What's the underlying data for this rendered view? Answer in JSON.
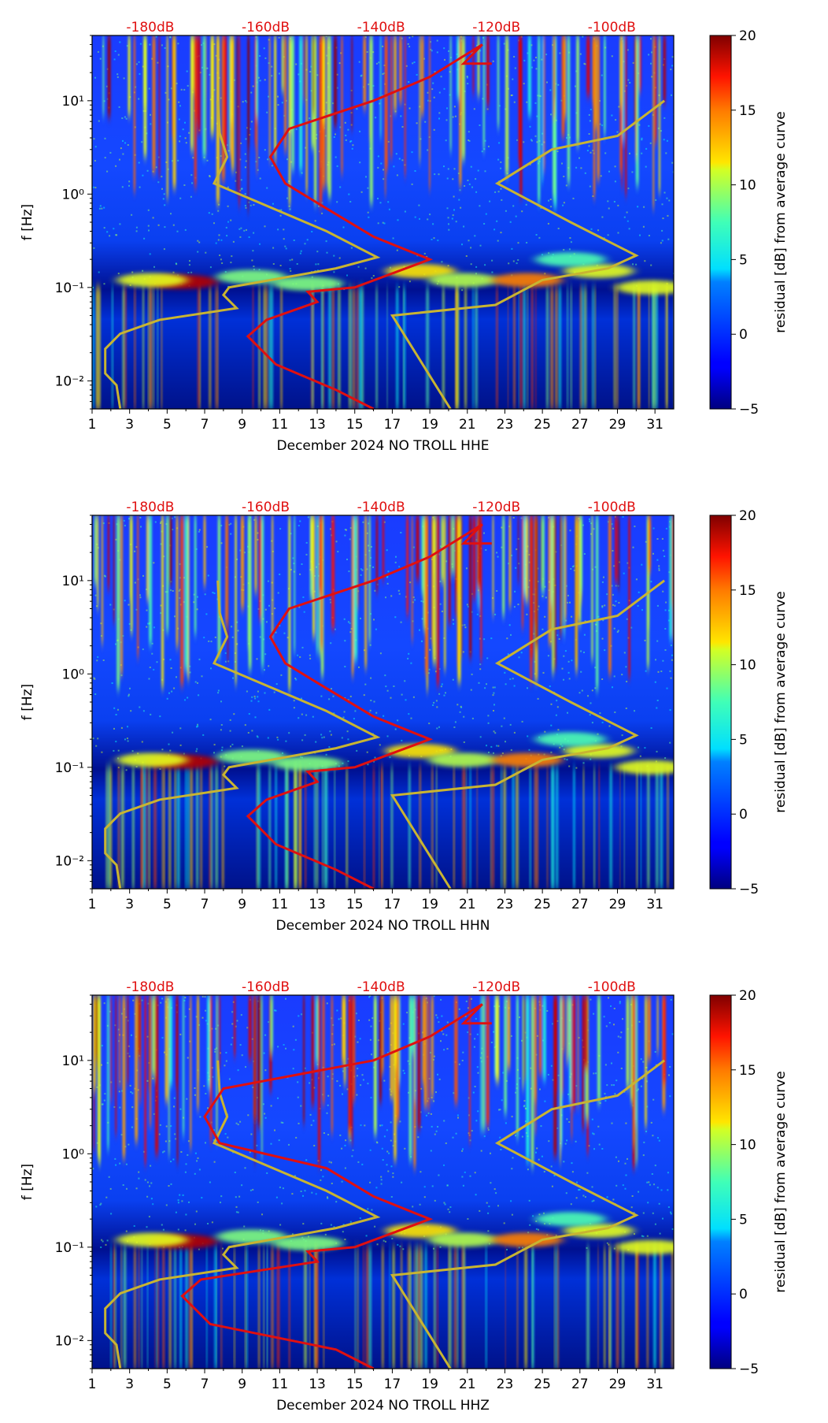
{
  "chart_data": [
    {
      "type": "heatmap",
      "title": "",
      "xlabel": "December 2024 NO TROLL  HHE",
      "ylabel": "f [Hz]",
      "x_ticks": [
        "1",
        "3",
        "5",
        "7",
        "9",
        "11",
        "13",
        "15",
        "17",
        "19",
        "21",
        "23",
        "25",
        "27",
        "29",
        "31"
      ],
      "x_range": [
        1,
        32
      ],
      "y_ticks": [
        "10⁻²",
        "10⁻¹",
        "10⁰",
        "10¹"
      ],
      "ylim": [
        0.005,
        50
      ],
      "db_labels": [
        "-180dB",
        "-160dB",
        "-140dB",
        "-120dB",
        "-100dB"
      ],
      "colorbar": {
        "label": "residual [dB] from average curve",
        "ticks": [
          "−5",
          "0",
          "5",
          "10",
          "15",
          "20"
        ],
        "range": [
          -5,
          20
        ]
      },
      "red_curve_day_min": 9.3
    },
    {
      "type": "heatmap",
      "title": "",
      "xlabel": "December 2024 NO TROLL  HHN",
      "ylabel": "f [Hz]",
      "x_ticks": [
        "1",
        "3",
        "5",
        "7",
        "9",
        "11",
        "13",
        "15",
        "17",
        "19",
        "21",
        "23",
        "25",
        "27",
        "29",
        "31"
      ],
      "x_range": [
        1,
        32
      ],
      "y_ticks": [
        "10⁻²",
        "10⁻¹",
        "10⁰",
        "10¹"
      ],
      "ylim": [
        0.005,
        50
      ],
      "db_labels": [
        "-180dB",
        "-160dB",
        "-140dB",
        "-120dB",
        "-100dB"
      ],
      "colorbar": {
        "label": "residual [dB] from average curve",
        "ticks": [
          "−5",
          "0",
          "5",
          "10",
          "15",
          "20"
        ],
        "range": [
          -5,
          20
        ]
      },
      "red_curve_day_min": 9.3
    },
    {
      "type": "heatmap",
      "title": "",
      "xlabel": "December 2024 NO TROLL  HHZ",
      "ylabel": "f [Hz]",
      "x_ticks": [
        "1",
        "3",
        "5",
        "7",
        "9",
        "11",
        "13",
        "15",
        "17",
        "19",
        "21",
        "23",
        "25",
        "27",
        "29",
        "31"
      ],
      "x_range": [
        1,
        32
      ],
      "y_ticks": [
        "10⁻²",
        "10⁻¹",
        "10⁰",
        "10¹"
      ],
      "ylim": [
        0.005,
        50
      ],
      "db_labels": [
        "-180dB",
        "-160dB",
        "-140dB",
        "-120dB",
        "-100dB"
      ],
      "colorbar": {
        "label": "residual [dB] from average curve",
        "ticks": [
          "−5",
          "0",
          "5",
          "10",
          "15",
          "20"
        ],
        "range": [
          -5,
          20
        ]
      },
      "red_curve_day_min": 5.8
    }
  ],
  "colors": {
    "background": "#00008f",
    "red_curve": "#e01010",
    "model_curve": "#c8b432",
    "db_label": "#e01010"
  }
}
